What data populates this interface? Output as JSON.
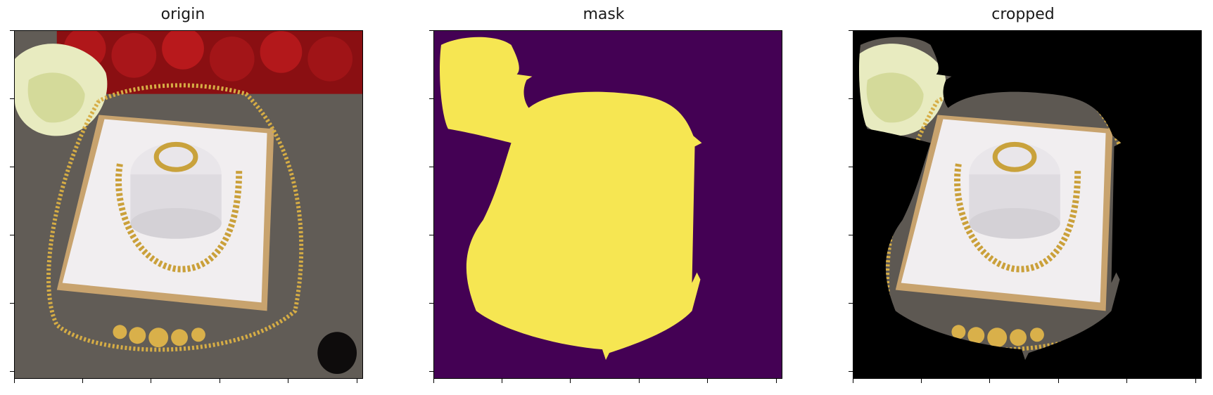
{
  "figure": {
    "panels": [
      {
        "title": "origin"
      },
      {
        "title": "mask"
      },
      {
        "title": "cropped"
      }
    ],
    "colors": {
      "mask_background": "#440154",
      "mask_foreground": "#f6e652",
      "cropped_background": "#000000"
    }
  }
}
